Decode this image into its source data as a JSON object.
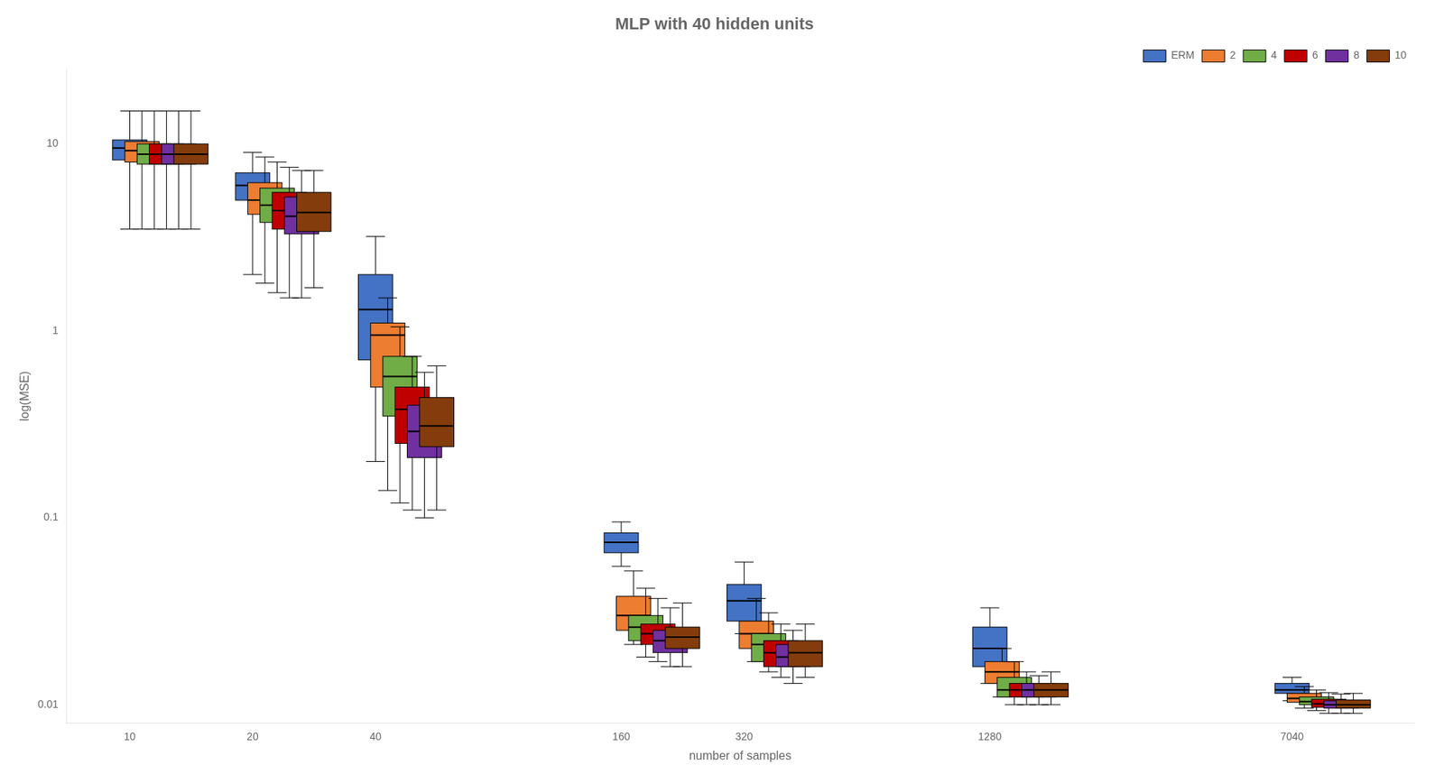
{
  "chart_data": {
    "type": "box",
    "title": "MLP with 40 hidden units",
    "xlabel": "number of samples",
    "ylabel": "log(MSE)",
    "x": [
      10,
      20,
      40,
      160,
      320,
      1280,
      7040
    ],
    "xlim": [
      7.0,
      14000
    ],
    "xticks": [
      10,
      20,
      40,
      160,
      320,
      1280,
      7040
    ],
    "ylim": [
      0.008,
      25.0
    ],
    "yticks": [
      0.01,
      0.1,
      1,
      10
    ],
    "log": true,
    "grid": false,
    "legend": "upper right",
    "series": [
      {
        "name": "ERM",
        "color": "#4472C4",
        "values": [
          {
            "whislo": 3.5,
            "q1": 8.2,
            "med": 9.5,
            "q3": 10.5,
            "whishi": 15.0
          },
          {
            "whislo": 2.0,
            "q1": 5.0,
            "med": 6.0,
            "q3": 7.0,
            "whishi": 9.0
          },
          {
            "whislo": 0.2,
            "q1": 0.7,
            "med": 1.3,
            "q3": 2.0,
            "whishi": 3.2
          },
          {
            "whislo": 0.055,
            "q1": 0.065,
            "med": 0.074,
            "q3": 0.083,
            "whishi": 0.095
          },
          {
            "whislo": 0.024,
            "q1": 0.028,
            "med": 0.036,
            "q3": 0.044,
            "whishi": 0.058
          },
          {
            "whislo": 0.013,
            "q1": 0.016,
            "med": 0.02,
            "q3": 0.026,
            "whishi": 0.033
          },
          {
            "whislo": 0.0105,
            "q1": 0.0115,
            "med": 0.012,
            "q3": 0.013,
            "whishi": 0.014
          }
        ]
      },
      {
        "name": "2",
        "color": "#ED7D31",
        "values": [
          {
            "whislo": 3.5,
            "q1": 8.0,
            "med": 9.2,
            "q3": 10.3,
            "whishi": 15.0
          },
          {
            "whislo": 1.8,
            "q1": 4.2,
            "med": 5.0,
            "q3": 6.2,
            "whishi": 8.5
          },
          {
            "whislo": 0.14,
            "q1": 0.5,
            "med": 0.95,
            "q3": 1.1,
            "whishi": 1.5
          },
          {
            "whislo": 0.021,
            "q1": 0.025,
            "med": 0.03,
            "q3": 0.038,
            "whishi": 0.052
          },
          {
            "whislo": 0.017,
            "q1": 0.02,
            "med": 0.024,
            "q3": 0.028,
            "whishi": 0.037
          },
          {
            "whislo": 0.011,
            "q1": 0.013,
            "med": 0.015,
            "q3": 0.017,
            "whishi": 0.02
          },
          {
            "whislo": 0.0096,
            "q1": 0.0103,
            "med": 0.0108,
            "q3": 0.0115,
            "whishi": 0.0125
          }
        ]
      },
      {
        "name": "4",
        "color": "#70AD47",
        "values": [
          {
            "whislo": 3.5,
            "q1": 7.8,
            "med": 8.8,
            "q3": 10.0,
            "whishi": 15.0
          },
          {
            "whislo": 1.6,
            "q1": 3.8,
            "med": 4.7,
            "q3": 5.8,
            "whishi": 8.0
          },
          {
            "whislo": 0.12,
            "q1": 0.35,
            "med": 0.57,
            "q3": 0.73,
            "whishi": 1.05
          },
          {
            "whislo": 0.018,
            "q1": 0.022,
            "med": 0.026,
            "q3": 0.03,
            "whishi": 0.042
          },
          {
            "whislo": 0.015,
            "q1": 0.017,
            "med": 0.021,
            "q3": 0.024,
            "whishi": 0.031
          },
          {
            "whislo": 0.01,
            "q1": 0.011,
            "med": 0.012,
            "q3": 0.014,
            "whishi": 0.017
          },
          {
            "whislo": 0.0093,
            "q1": 0.01,
            "med": 0.0104,
            "q3": 0.011,
            "whishi": 0.012
          }
        ]
      },
      {
        "name": "6",
        "color": "#C00000",
        "values": [
          {
            "whislo": 3.5,
            "q1": 7.8,
            "med": 8.8,
            "q3": 10.0,
            "whishi": 15.0
          },
          {
            "whislo": 1.5,
            "q1": 3.5,
            "med": 4.4,
            "q3": 5.5,
            "whishi": 7.5
          },
          {
            "whislo": 0.11,
            "q1": 0.25,
            "med": 0.38,
            "q3": 0.5,
            "whishi": 0.73
          },
          {
            "whislo": 0.017,
            "q1": 0.021,
            "med": 0.024,
            "q3": 0.027,
            "whishi": 0.037
          },
          {
            "whislo": 0.014,
            "q1": 0.016,
            "med": 0.019,
            "q3": 0.022,
            "whishi": 0.027
          },
          {
            "whislo": 0.01,
            "q1": 0.011,
            "med": 0.012,
            "q3": 0.013,
            "whishi": 0.015
          },
          {
            "whislo": 0.009,
            "q1": 0.0097,
            "med": 0.0101,
            "q3": 0.0107,
            "whishi": 0.0116
          }
        ]
      },
      {
        "name": "8",
        "color": "#7030A0",
        "values": [
          {
            "whislo": 3.5,
            "q1": 7.8,
            "med": 8.8,
            "q3": 10.0,
            "whishi": 15.0
          },
          {
            "whislo": 1.5,
            "q1": 3.3,
            "med": 4.1,
            "q3": 5.2,
            "whishi": 7.2
          },
          {
            "whislo": 0.1,
            "q1": 0.21,
            "med": 0.29,
            "q3": 0.4,
            "whishi": 0.6
          },
          {
            "whislo": 0.016,
            "q1": 0.019,
            "med": 0.022,
            "q3": 0.025,
            "whishi": 0.033
          },
          {
            "whislo": 0.013,
            "q1": 0.016,
            "med": 0.018,
            "q3": 0.021,
            "whishi": 0.025
          },
          {
            "whislo": 0.01,
            "q1": 0.011,
            "med": 0.012,
            "q3": 0.013,
            "whishi": 0.0143
          },
          {
            "whislo": 0.009,
            "q1": 0.0096,
            "med": 0.01,
            "q3": 0.0105,
            "whishi": 0.0114
          }
        ]
      },
      {
        "name": "10",
        "color": "#843C0C",
        "values": [
          {
            "whislo": 3.5,
            "q1": 7.8,
            "med": 8.8,
            "q3": 10.0,
            "whishi": 15.0
          },
          {
            "whislo": 1.7,
            "q1": 3.4,
            "med": 4.3,
            "q3": 5.5,
            "whishi": 7.2
          },
          {
            "whislo": 0.11,
            "q1": 0.24,
            "med": 0.31,
            "q3": 0.44,
            "whishi": 0.65
          },
          {
            "whislo": 0.016,
            "q1": 0.02,
            "med": 0.023,
            "q3": 0.026,
            "whishi": 0.035
          },
          {
            "whislo": 0.014,
            "q1": 0.016,
            "med": 0.019,
            "q3": 0.022,
            "whishi": 0.027
          },
          {
            "whislo": 0.01,
            "q1": 0.011,
            "med": 0.012,
            "q3": 0.013,
            "whishi": 0.015
          },
          {
            "whislo": 0.009,
            "q1": 0.0096,
            "med": 0.01,
            "q3": 0.0106,
            "whishi": 0.0115
          }
        ]
      }
    ]
  }
}
